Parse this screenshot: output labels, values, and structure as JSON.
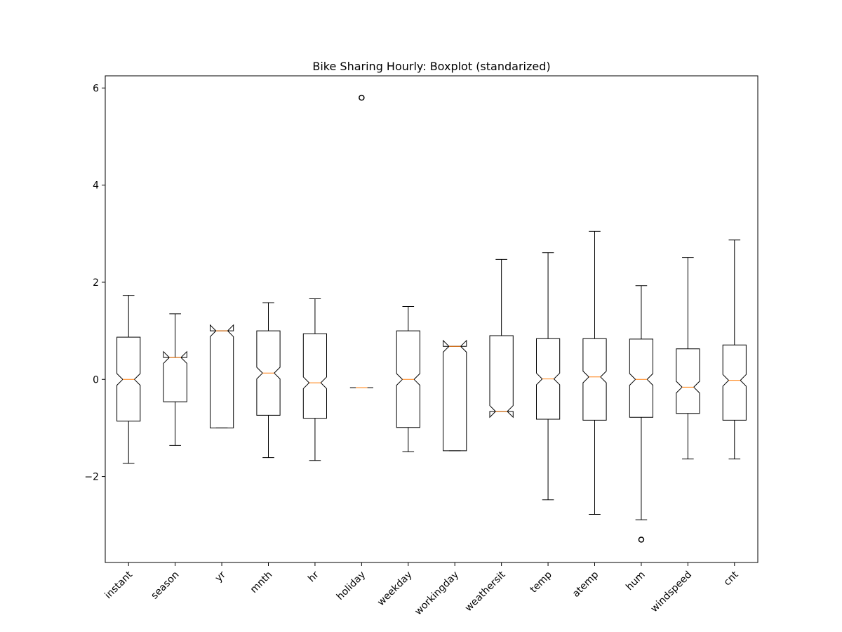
{
  "chart_data": {
    "type": "boxplot",
    "title": "Bike Sharing Hourly: Boxplot (standarized)",
    "xlabel": "",
    "ylabel": "",
    "notched": true,
    "grid": false,
    "ylim": [
      -3.77,
      6.25
    ],
    "yticks": [
      -2,
      0,
      2,
      4,
      6
    ],
    "ytick_labels": [
      "−2",
      "0",
      "2",
      "4",
      "6"
    ],
    "categories": [
      "instant",
      "season",
      "yr",
      "mnth",
      "hr",
      "holiday",
      "weekday",
      "workingday",
      "weathersit",
      "temp",
      "atemp",
      "hum",
      "windspeed",
      "cnt"
    ],
    "boxes": [
      {
        "name": "instant",
        "whislo": -1.73,
        "q1": -0.86,
        "med": 0.0,
        "q3": 0.87,
        "whishi": 1.73,
        "fliers": []
      },
      {
        "name": "season",
        "whislo": -1.36,
        "q1": -0.46,
        "med": 0.45,
        "q3": 0.45,
        "whishi": 1.35,
        "fliers": []
      },
      {
        "name": "yr",
        "whislo": -1.0,
        "q1": -1.0,
        "med": 1.0,
        "q3": 1.0,
        "whishi": 1.0,
        "fliers": []
      },
      {
        "name": "mnth",
        "whislo": -1.61,
        "q1": -0.74,
        "med": 0.13,
        "q3": 1.0,
        "whishi": 1.58,
        "fliers": []
      },
      {
        "name": "hr",
        "whislo": -1.67,
        "q1": -0.8,
        "med": -0.07,
        "q3": 0.94,
        "whishi": 1.66,
        "fliers": []
      },
      {
        "name": "holiday",
        "whislo": -0.17,
        "q1": -0.17,
        "med": -0.17,
        "q3": -0.17,
        "whishi": -0.17,
        "fliers": [
          5.8
        ]
      },
      {
        "name": "weekday",
        "whislo": -1.49,
        "q1": -0.99,
        "med": 0.0,
        "q3": 1.0,
        "whishi": 1.5,
        "fliers": []
      },
      {
        "name": "workingday",
        "whislo": -1.47,
        "q1": -1.47,
        "med": 0.68,
        "q3": 0.68,
        "whishi": 0.68,
        "fliers": []
      },
      {
        "name": "weathersit",
        "whislo": -0.66,
        "q1": -0.66,
        "med": -0.66,
        "q3": 0.9,
        "whishi": 2.47,
        "fliers": []
      },
      {
        "name": "temp",
        "whislo": -2.48,
        "q1": -0.82,
        "med": 0.01,
        "q3": 0.84,
        "whishi": 2.61,
        "fliers": []
      },
      {
        "name": "atemp",
        "whislo": -2.78,
        "q1": -0.84,
        "med": 0.05,
        "q3": 0.84,
        "whishi": 3.05,
        "fliers": []
      },
      {
        "name": "hum",
        "whislo": -2.89,
        "q1": -0.78,
        "med": 0.0,
        "q3": 0.83,
        "whishi": 1.93,
        "fliers": [
          -3.3
        ]
      },
      {
        "name": "windspeed",
        "whislo": -1.64,
        "q1": -0.7,
        "med": -0.16,
        "q3": 0.63,
        "whishi": 2.51,
        "fliers": []
      },
      {
        "name": "cnt",
        "whislo": -1.64,
        "q1": -0.84,
        "med": -0.02,
        "q3": 0.71,
        "whishi": 2.87,
        "fliers": []
      }
    ],
    "colors": {
      "box": "#000000",
      "median": "#ff7f0e",
      "flier": "#000000",
      "axes": "#000000",
      "background": "#ffffff"
    }
  }
}
